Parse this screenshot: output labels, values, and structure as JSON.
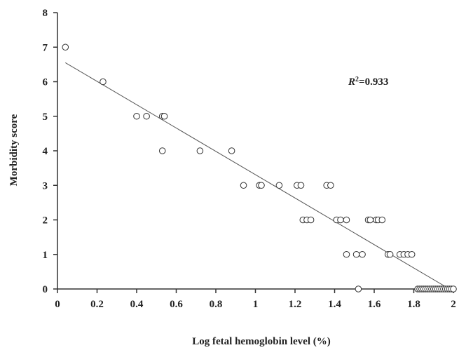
{
  "chart_data": {
    "type": "scatter",
    "title": "",
    "xlabel": "Log fetal hemoglobin level (%)",
    "ylabel": "Morbidity score",
    "xlim": [
      0,
      2
    ],
    "ylim": [
      0,
      8
    ],
    "xticks": [
      "0",
      "0.2",
      "0.4",
      "0.6",
      "0.8",
      "1",
      "1.2",
      "1.4",
      "1.6",
      "1.8",
      "2"
    ],
    "yticks": [
      "0",
      "1",
      "2",
      "3",
      "4",
      "5",
      "6",
      "7",
      "8"
    ],
    "grid": false,
    "annotation": {
      "r2_base": "R",
      "r2_exp": "2",
      "r2_value": "=0.933"
    },
    "trendline": {
      "x": [
        0.04,
        1.98
      ],
      "y": [
        6.55,
        0.0
      ]
    },
    "points": [
      [
        0.04,
        7
      ],
      [
        0.23,
        6
      ],
      [
        0.4,
        5
      ],
      [
        0.45,
        5
      ],
      [
        0.53,
        5
      ],
      [
        0.54,
        5
      ],
      [
        0.53,
        4
      ],
      [
        0.72,
        4
      ],
      [
        0.88,
        4
      ],
      [
        0.94,
        3
      ],
      [
        1.02,
        3
      ],
      [
        1.03,
        3
      ],
      [
        1.12,
        3
      ],
      [
        1.21,
        3
      ],
      [
        1.23,
        3
      ],
      [
        1.36,
        3
      ],
      [
        1.38,
        3
      ],
      [
        1.24,
        2
      ],
      [
        1.26,
        2
      ],
      [
        1.28,
        2
      ],
      [
        1.41,
        2
      ],
      [
        1.43,
        2
      ],
      [
        1.46,
        2
      ],
      [
        1.57,
        2
      ],
      [
        1.58,
        2
      ],
      [
        1.61,
        2
      ],
      [
        1.62,
        2
      ],
      [
        1.64,
        2
      ],
      [
        1.46,
        1
      ],
      [
        1.51,
        1
      ],
      [
        1.54,
        1
      ],
      [
        1.67,
        1
      ],
      [
        1.68,
        1
      ],
      [
        1.73,
        1
      ],
      [
        1.75,
        1
      ],
      [
        1.77,
        1
      ],
      [
        1.79,
        1
      ],
      [
        1.52,
        0
      ],
      [
        1.82,
        0
      ],
      [
        1.83,
        0
      ],
      [
        1.84,
        0
      ],
      [
        1.85,
        0
      ],
      [
        1.86,
        0
      ],
      [
        1.87,
        0
      ],
      [
        1.88,
        0
      ],
      [
        1.89,
        0
      ],
      [
        1.9,
        0
      ],
      [
        1.91,
        0
      ],
      [
        1.92,
        0
      ],
      [
        1.93,
        0
      ],
      [
        1.94,
        0
      ],
      [
        1.95,
        0
      ],
      [
        1.96,
        0
      ],
      [
        1.97,
        0
      ],
      [
        1.98,
        0
      ],
      [
        1.99,
        0
      ],
      [
        2.0,
        0
      ]
    ]
  }
}
